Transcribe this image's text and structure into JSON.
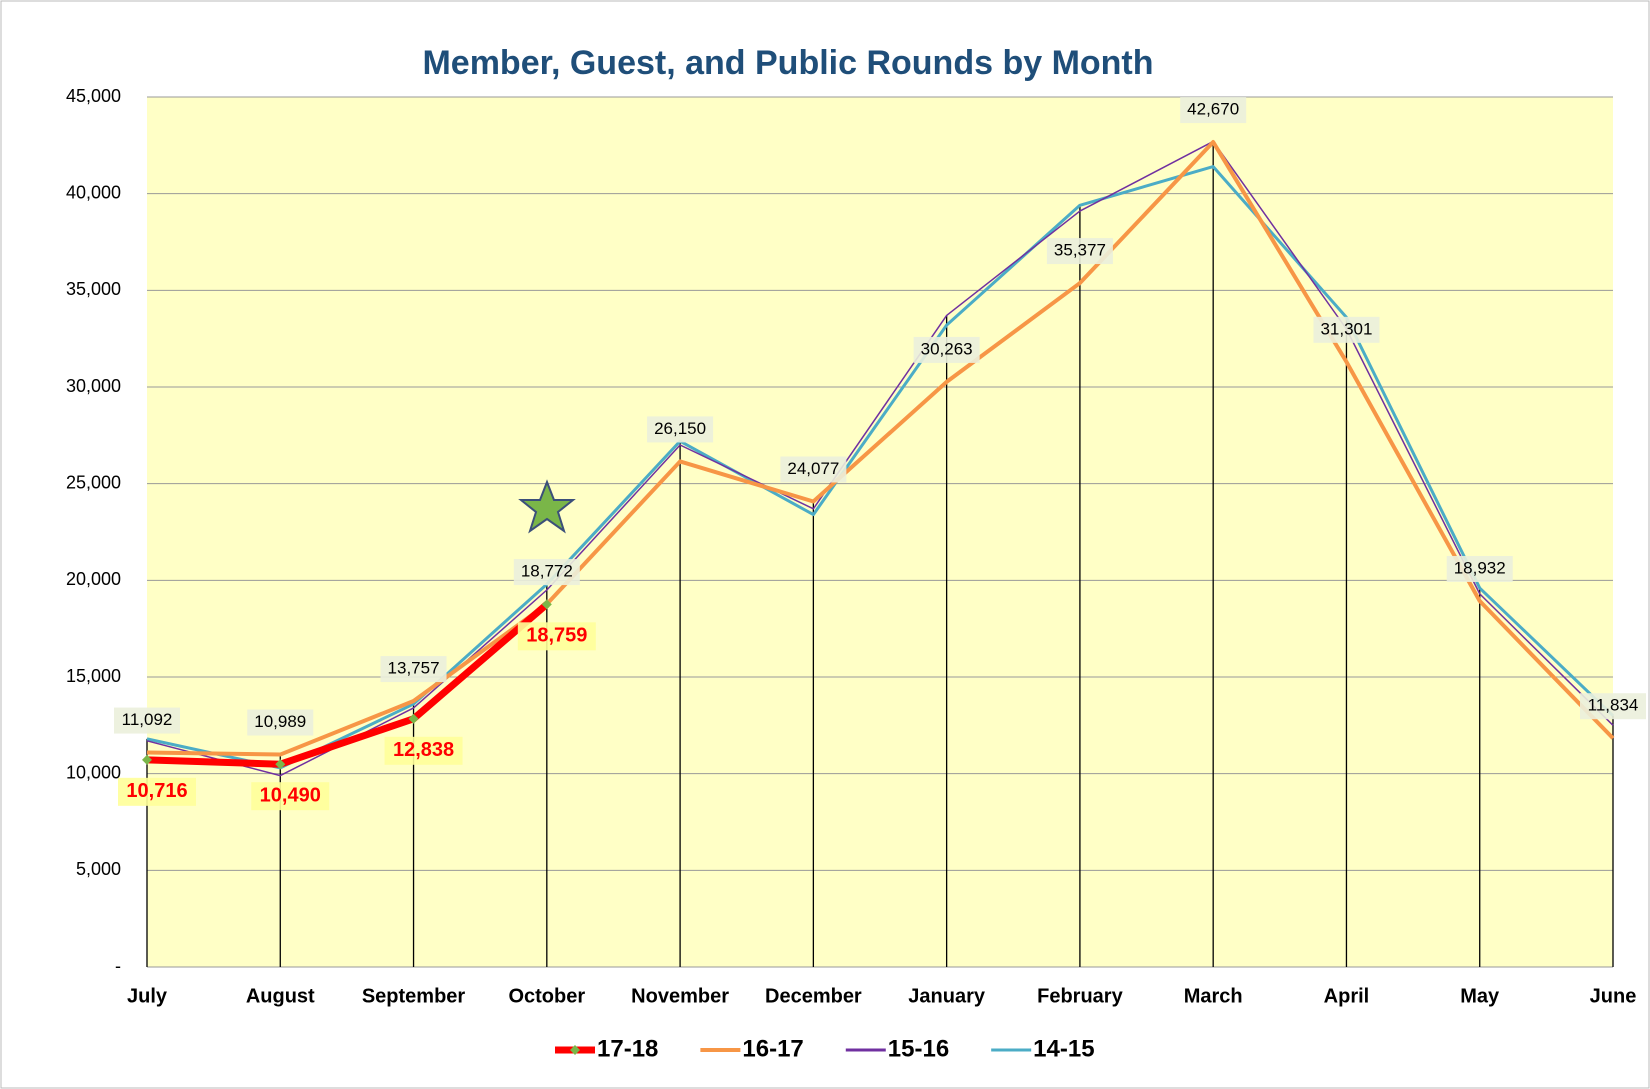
{
  "chart_data": {
    "type": "line",
    "title": "Member, Guest, and Public Rounds by Month",
    "categories": [
      "July",
      "August",
      "September",
      "October",
      "November",
      "December",
      "January",
      "February",
      "March",
      "April",
      "May",
      "June"
    ],
    "series": [
      {
        "name": "17-18",
        "color": "#ff0000",
        "marker_color": "#7ab648",
        "values": [
          10716,
          10490,
          12838,
          18759,
          null,
          null,
          null,
          null,
          null,
          null,
          null,
          null
        ],
        "value_labels": [
          "10,716",
          "10,490",
          "12,838",
          "18,759",
          null,
          null,
          null,
          null,
          null,
          null,
          null,
          null
        ]
      },
      {
        "name": "16-17",
        "color": "#f79646",
        "values": [
          11092,
          10989,
          13757,
          18772,
          26150,
          24077,
          30263,
          35377,
          42670,
          31301,
          18932,
          11834
        ],
        "value_labels": [
          "11,092",
          "10,989",
          "13,757",
          "18,772",
          "26,150",
          "24,077",
          "30,263",
          "35,377",
          "42,670",
          "31,301",
          "18,932",
          "11,834"
        ]
      },
      {
        "name": "15-16",
        "color": "#7030a0",
        "values": [
          11700,
          9900,
          13400,
          19500,
          27000,
          23700,
          33700,
          39100,
          42700,
          33000,
          19300,
          12500
        ]
      },
      {
        "name": "14-15",
        "color": "#4bacc6",
        "values": [
          11800,
          10300,
          13600,
          19800,
          27200,
          23400,
          33200,
          39400,
          41400,
          33600,
          19600,
          13000
        ]
      }
    ],
    "ylim": [
      0,
      45000
    ],
    "yticks": [
      {
        "value": 0,
        "label": "-"
      },
      {
        "value": 5000,
        "label": "5,000"
      },
      {
        "value": 10000,
        "label": "10,000"
      },
      {
        "value": 15000,
        "label": "15,000"
      },
      {
        "value": 20000,
        "label": "20,000"
      },
      {
        "value": 25000,
        "label": "25,000"
      },
      {
        "value": 30000,
        "label": "30,000"
      },
      {
        "value": 35000,
        "label": "35,000"
      },
      {
        "value": 40000,
        "label": "40,000"
      },
      {
        "value": 45000,
        "label": "45,000"
      }
    ],
    "grid": true,
    "legend": "bottom"
  }
}
